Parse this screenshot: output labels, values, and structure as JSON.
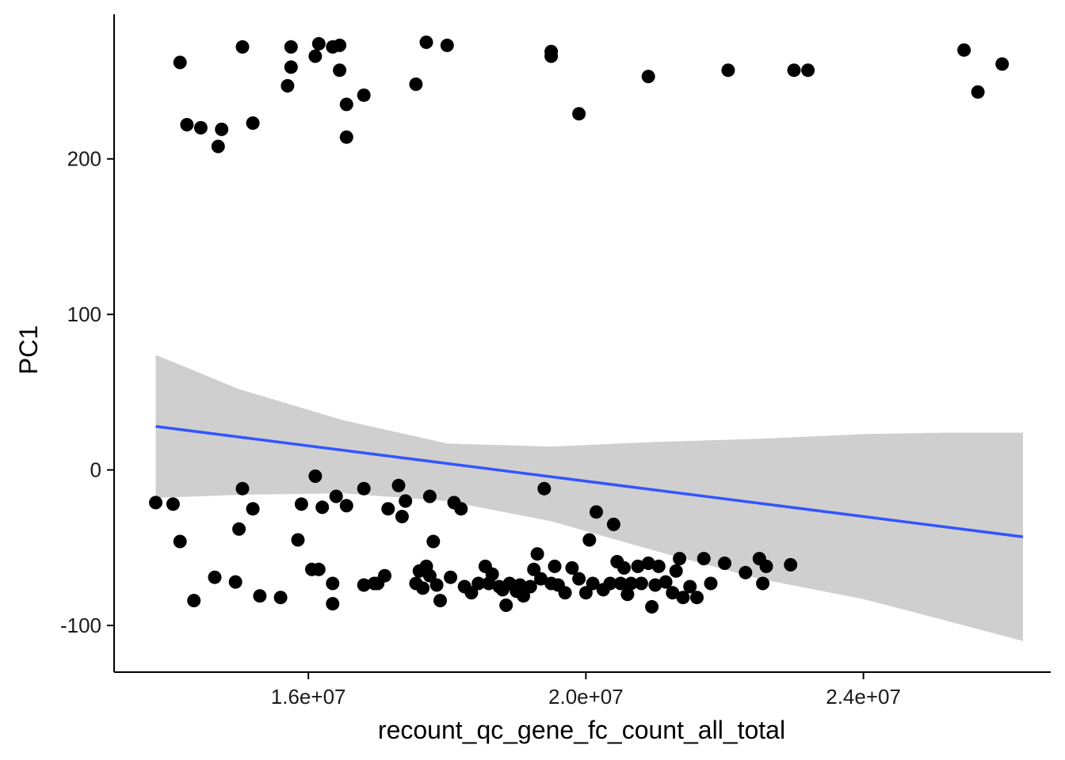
{
  "chart_data": {
    "type": "scatter",
    "title": "",
    "xlabel": "recount_qc_gene_fc_count_all_total",
    "ylabel": "PC1",
    "xlim": [
      13200000,
      26700000
    ],
    "ylim": [
      -130,
      293
    ],
    "x_ticks": [
      {
        "value": 16000000,
        "label": "1.6e+07"
      },
      {
        "value": 20000000,
        "label": "2.0e+07"
      },
      {
        "value": 24000000,
        "label": "2.4e+07"
      }
    ],
    "y_ticks": [
      {
        "value": -100,
        "label": "-100"
      },
      {
        "value": 0,
        "label": "0"
      },
      {
        "value": 100,
        "label": "100"
      },
      {
        "value": 200,
        "label": "200"
      }
    ],
    "grid": false,
    "legend": "none",
    "colors": {
      "points": "#000000",
      "fit_line": "#3355ff",
      "ribbon": "#bdbdbd",
      "axis": "#000000"
    },
    "fit_line": {
      "x": [
        13800000,
        26300000
      ],
      "y": [
        28,
        -43
      ]
    },
    "confidence_band": [
      {
        "x": 13800000,
        "lower": -18,
        "upper": 74
      },
      {
        "x": 15000000,
        "lower": -16,
        "upper": 52
      },
      {
        "x": 16500000,
        "lower": -15,
        "upper": 32
      },
      {
        "x": 18000000,
        "lower": -20,
        "upper": 17
      },
      {
        "x": 19500000,
        "lower": -33,
        "upper": 15
      },
      {
        "x": 21000000,
        "lower": -52,
        "upper": 18
      },
      {
        "x": 22500000,
        "lower": -70,
        "upper": 20
      },
      {
        "x": 24000000,
        "lower": -83,
        "upper": 23
      },
      {
        "x": 25200000,
        "lower": -97,
        "upper": 24
      },
      {
        "x": 26300000,
        "lower": -110,
        "upper": 24
      }
    ],
    "series": [
      {
        "points": [
          [
            14150000,
            262
          ],
          [
            14250000,
            222
          ],
          [
            14450000,
            220
          ],
          [
            14700000,
            208
          ],
          [
            14750000,
            219
          ],
          [
            15050000,
            272
          ],
          [
            15200000,
            223
          ],
          [
            15700000,
            247
          ],
          [
            15750000,
            259
          ],
          [
            15750000,
            272
          ],
          [
            16100000,
            266
          ],
          [
            16150000,
            274
          ],
          [
            16350000,
            272
          ],
          [
            16450000,
            273
          ],
          [
            16450000,
            257
          ],
          [
            16550000,
            235
          ],
          [
            16550000,
            214
          ],
          [
            16800000,
            241
          ],
          [
            17550000,
            248
          ],
          [
            17700000,
            275
          ],
          [
            18000000,
            273
          ],
          [
            19500000,
            266
          ],
          [
            19500000,
            269
          ],
          [
            19900000,
            229
          ],
          [
            20900000,
            253
          ],
          [
            22050000,
            257
          ],
          [
            23000000,
            257
          ],
          [
            23200000,
            257
          ],
          [
            25450000,
            270
          ],
          [
            25650000,
            243
          ],
          [
            26000000,
            261
          ],
          [
            13800000,
            -21
          ],
          [
            14050000,
            -22
          ],
          [
            14150000,
            -46
          ],
          [
            14350000,
            -84
          ],
          [
            14650000,
            -69
          ],
          [
            14950000,
            -72
          ],
          [
            15000000,
            -38
          ],
          [
            15050000,
            -12
          ],
          [
            15200000,
            -25
          ],
          [
            15300000,
            -81
          ],
          [
            15600000,
            -82
          ],
          [
            15850000,
            -45
          ],
          [
            15900000,
            -22
          ],
          [
            16050000,
            -64
          ],
          [
            16100000,
            -4
          ],
          [
            16150000,
            -64
          ],
          [
            16200000,
            -24
          ],
          [
            16350000,
            -73
          ],
          [
            16350000,
            -86
          ],
          [
            16400000,
            -17
          ],
          [
            16550000,
            -23
          ],
          [
            16800000,
            -74
          ],
          [
            16800000,
            -12
          ],
          [
            16950000,
            -73
          ],
          [
            17000000,
            -73
          ],
          [
            17100000,
            -68
          ],
          [
            17150000,
            -25
          ],
          [
            17300000,
            -10
          ],
          [
            17350000,
            -30
          ],
          [
            17400000,
            -20
          ],
          [
            17550000,
            -73
          ],
          [
            17600000,
            -65
          ],
          [
            17650000,
            -76
          ],
          [
            17700000,
            -62
          ],
          [
            17750000,
            -68
          ],
          [
            17750000,
            -17
          ],
          [
            17800000,
            -46
          ],
          [
            17850000,
            -74
          ],
          [
            17900000,
            -84
          ],
          [
            18050000,
            -69
          ],
          [
            18100000,
            -21
          ],
          [
            18200000,
            -25
          ],
          [
            18250000,
            -75
          ],
          [
            18350000,
            -79
          ],
          [
            18450000,
            -73
          ],
          [
            18550000,
            -62
          ],
          [
            18600000,
            -73
          ],
          [
            18650000,
            -67
          ],
          [
            18750000,
            -75
          ],
          [
            18800000,
            -77
          ],
          [
            18850000,
            -87
          ],
          [
            18900000,
            -73
          ],
          [
            19000000,
            -78
          ],
          [
            19050000,
            -74
          ],
          [
            19100000,
            -81
          ],
          [
            19200000,
            -75
          ],
          [
            19250000,
            -64
          ],
          [
            19300000,
            -54
          ],
          [
            19350000,
            -70
          ],
          [
            19400000,
            -12
          ],
          [
            19500000,
            -73
          ],
          [
            19550000,
            -62
          ],
          [
            19600000,
            -74
          ],
          [
            19700000,
            -79
          ],
          [
            19800000,
            -63
          ],
          [
            19900000,
            -70
          ],
          [
            20000000,
            -79
          ],
          [
            20050000,
            -45
          ],
          [
            20100000,
            -73
          ],
          [
            20150000,
            -27
          ],
          [
            20250000,
            -77
          ],
          [
            20350000,
            -73
          ],
          [
            20400000,
            -35
          ],
          [
            20450000,
            -59
          ],
          [
            20500000,
            -73
          ],
          [
            20550000,
            -63
          ],
          [
            20600000,
            -80
          ],
          [
            20650000,
            -73
          ],
          [
            20750000,
            -62
          ],
          [
            20800000,
            -73
          ],
          [
            20900000,
            -60
          ],
          [
            20950000,
            -88
          ],
          [
            21000000,
            -74
          ],
          [
            21050000,
            -62
          ],
          [
            21150000,
            -72
          ],
          [
            21250000,
            -79
          ],
          [
            21300000,
            -65
          ],
          [
            21350000,
            -57
          ],
          [
            21400000,
            -82
          ],
          [
            21500000,
            -75
          ],
          [
            21600000,
            -82
          ],
          [
            21700000,
            -57
          ],
          [
            21800000,
            -73
          ],
          [
            22000000,
            -60
          ],
          [
            22300000,
            -66
          ],
          [
            22500000,
            -57
          ],
          [
            22550000,
            -73
          ],
          [
            22600000,
            -62
          ],
          [
            22950000,
            -61
          ]
        ]
      }
    ]
  }
}
